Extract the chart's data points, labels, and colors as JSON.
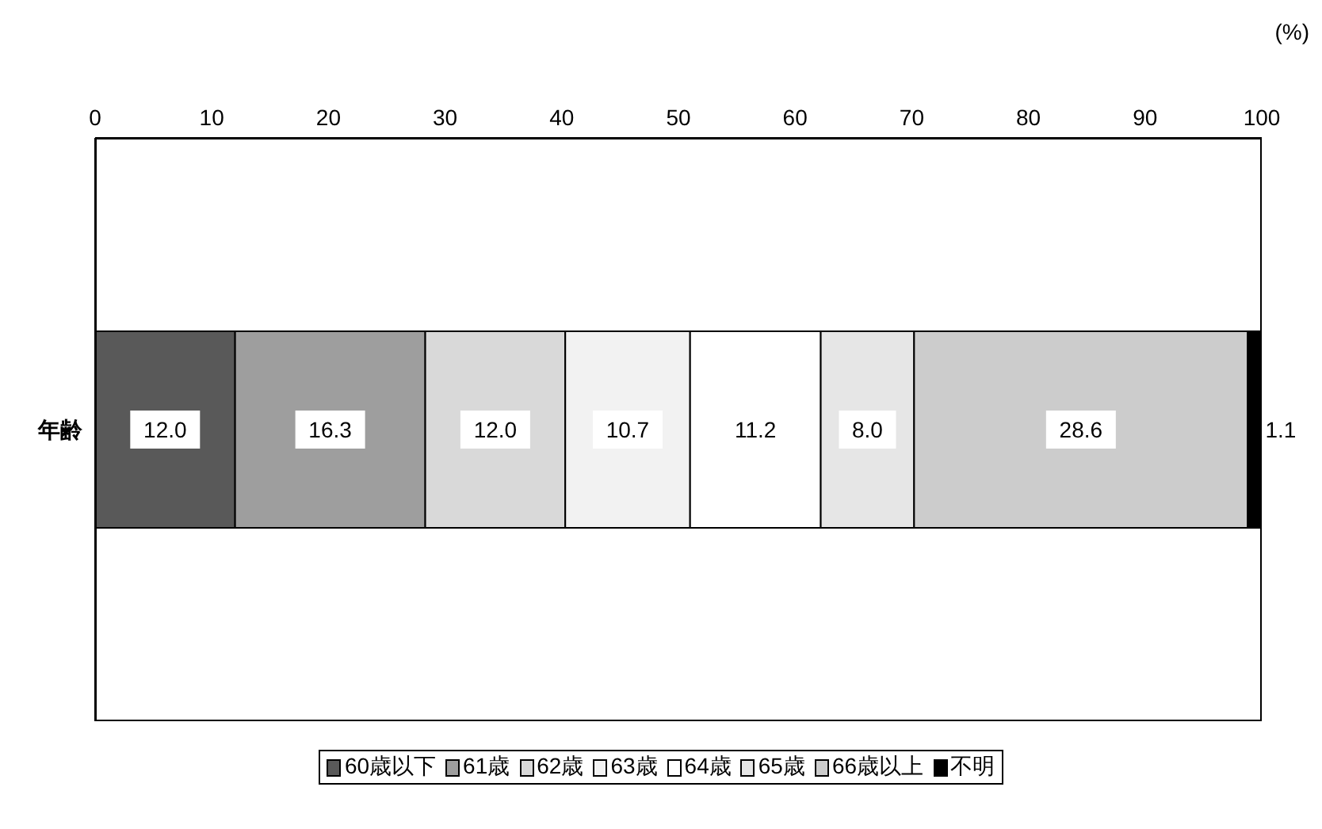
{
  "chart_data": {
    "type": "bar",
    "orientation": "horizontal",
    "stacked": true,
    "xlabel": "(%)",
    "categories": [
      "年齢"
    ],
    "xlim": [
      0,
      100
    ],
    "xticks": [
      0,
      10,
      20,
      30,
      40,
      50,
      60,
      70,
      80,
      90,
      100
    ],
    "legend": "bottom",
    "series": [
      {
        "name": "60歳以下",
        "color": "#595959",
        "values": [
          12.0
        ],
        "value_labels": [
          "12.0"
        ]
      },
      {
        "name": "61歳",
        "color": "#9e9e9e",
        "values": [
          16.3
        ],
        "value_labels": [
          "16.3"
        ]
      },
      {
        "name": "62歳",
        "color": "#d9d9d9",
        "values": [
          12.0
        ],
        "value_labels": [
          "12.0"
        ]
      },
      {
        "name": "63歳",
        "color": "#f2f2f2",
        "values": [
          10.7
        ],
        "value_labels": [
          "10.7"
        ]
      },
      {
        "name": "64歳",
        "color": "#ffffff",
        "values": [
          11.2
        ],
        "value_labels": [
          "11.2"
        ]
      },
      {
        "name": "65歳",
        "color": "#e6e6e6",
        "values": [
          8.0
        ],
        "value_labels": [
          "8.0"
        ]
      },
      {
        "name": "66歳以上",
        "color": "#cccccc",
        "values": [
          28.6
        ],
        "value_labels": [
          "28.6"
        ]
      },
      {
        "name": "不明",
        "color": "#000000",
        "values": [
          1.1
        ],
        "value_labels": [
          "1.1"
        ]
      }
    ]
  }
}
